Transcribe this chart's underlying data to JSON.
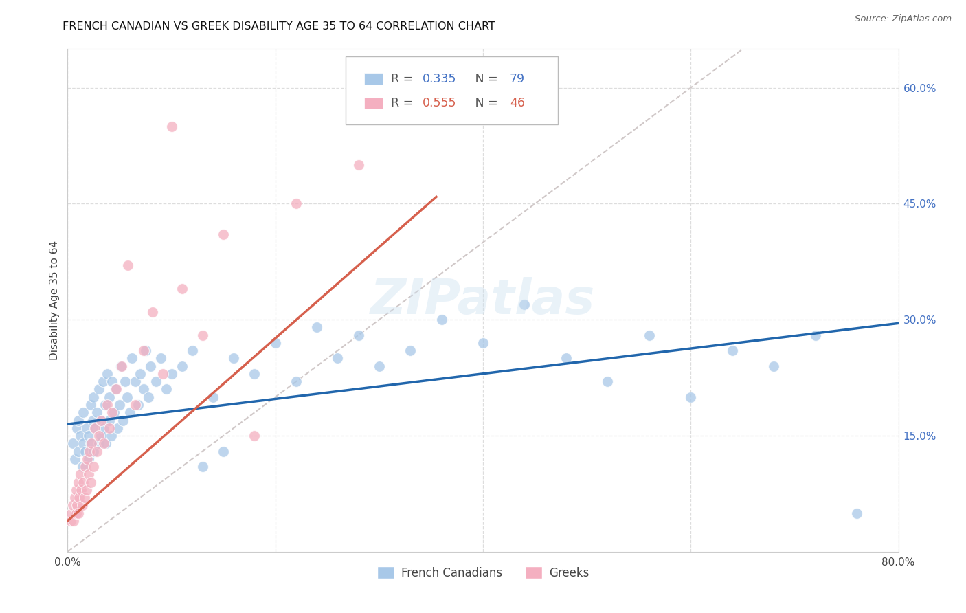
{
  "title": "FRENCH CANADIAN VS GREEK DISABILITY AGE 35 TO 64 CORRELATION CHART",
  "source": "Source: ZipAtlas.com",
  "ylabel": "Disability Age 35 to 64",
  "xlim": [
    0.0,
    0.8
  ],
  "ylim": [
    0.0,
    0.65
  ],
  "xticks": [
    0.0,
    0.2,
    0.4,
    0.6,
    0.8
  ],
  "xtick_labels": [
    "0.0%",
    "",
    "",
    "",
    "80.0%"
  ],
  "ytick_labels_right": [
    "15.0%",
    "30.0%",
    "45.0%",
    "60.0%"
  ],
  "yticks_right": [
    0.15,
    0.3,
    0.45,
    0.6
  ],
  "blue_scatter_color": "#a8c8e8",
  "pink_scatter_color": "#f4afc0",
  "blue_line_color": "#2166ac",
  "pink_line_color": "#d6604d",
  "diagonal_color": "#d0c8c8",
  "grid_color": "#dddddd",
  "r_blue": "0.335",
  "n_blue": "79",
  "r_pink": "0.555",
  "n_pink": "46",
  "watermark": "ZIPatlas",
  "fc_x": [
    0.005,
    0.007,
    0.009,
    0.01,
    0.01,
    0.012,
    0.014,
    0.015,
    0.015,
    0.017,
    0.018,
    0.02,
    0.02,
    0.022,
    0.022,
    0.024,
    0.025,
    0.025,
    0.027,
    0.028,
    0.03,
    0.03,
    0.032,
    0.033,
    0.034,
    0.035,
    0.036,
    0.037,
    0.038,
    0.04,
    0.04,
    0.042,
    0.043,
    0.045,
    0.046,
    0.048,
    0.05,
    0.051,
    0.053,
    0.055,
    0.057,
    0.06,
    0.062,
    0.065,
    0.068,
    0.07,
    0.073,
    0.075,
    0.078,
    0.08,
    0.085,
    0.09,
    0.095,
    0.1,
    0.11,
    0.12,
    0.13,
    0.14,
    0.15,
    0.16,
    0.18,
    0.2,
    0.22,
    0.24,
    0.26,
    0.28,
    0.3,
    0.33,
    0.36,
    0.4,
    0.44,
    0.48,
    0.52,
    0.56,
    0.6,
    0.64,
    0.68,
    0.72,
    0.76
  ],
  "fc_y": [
    0.14,
    0.12,
    0.16,
    0.13,
    0.17,
    0.15,
    0.11,
    0.14,
    0.18,
    0.13,
    0.16,
    0.12,
    0.15,
    0.19,
    0.14,
    0.17,
    0.13,
    0.2,
    0.16,
    0.18,
    0.14,
    0.21,
    0.15,
    0.17,
    0.22,
    0.16,
    0.19,
    0.14,
    0.23,
    0.17,
    0.2,
    0.15,
    0.22,
    0.18,
    0.21,
    0.16,
    0.19,
    0.24,
    0.17,
    0.22,
    0.2,
    0.18,
    0.25,
    0.22,
    0.19,
    0.23,
    0.21,
    0.26,
    0.2,
    0.24,
    0.22,
    0.25,
    0.21,
    0.23,
    0.24,
    0.26,
    0.11,
    0.2,
    0.13,
    0.25,
    0.23,
    0.27,
    0.22,
    0.29,
    0.25,
    0.28,
    0.24,
    0.26,
    0.3,
    0.27,
    0.32,
    0.25,
    0.22,
    0.28,
    0.2,
    0.26,
    0.24,
    0.28,
    0.05
  ],
  "gr_x": [
    0.003,
    0.004,
    0.005,
    0.006,
    0.007,
    0.008,
    0.008,
    0.009,
    0.01,
    0.01,
    0.011,
    0.012,
    0.013,
    0.014,
    0.015,
    0.016,
    0.017,
    0.018,
    0.019,
    0.02,
    0.021,
    0.022,
    0.023,
    0.025,
    0.026,
    0.028,
    0.03,
    0.032,
    0.035,
    0.038,
    0.04,
    0.043,
    0.047,
    0.052,
    0.058,
    0.065,
    0.073,
    0.082,
    0.092,
    0.1,
    0.11,
    0.13,
    0.15,
    0.18,
    0.22,
    0.28
  ],
  "gr_y": [
    0.04,
    0.05,
    0.06,
    0.04,
    0.07,
    0.05,
    0.08,
    0.06,
    0.05,
    0.09,
    0.07,
    0.1,
    0.08,
    0.06,
    0.09,
    0.07,
    0.11,
    0.08,
    0.12,
    0.1,
    0.13,
    0.09,
    0.14,
    0.11,
    0.16,
    0.13,
    0.15,
    0.17,
    0.14,
    0.19,
    0.16,
    0.18,
    0.21,
    0.24,
    0.37,
    0.19,
    0.26,
    0.31,
    0.23,
    0.55,
    0.34,
    0.28,
    0.41,
    0.15,
    0.45,
    0.5
  ]
}
